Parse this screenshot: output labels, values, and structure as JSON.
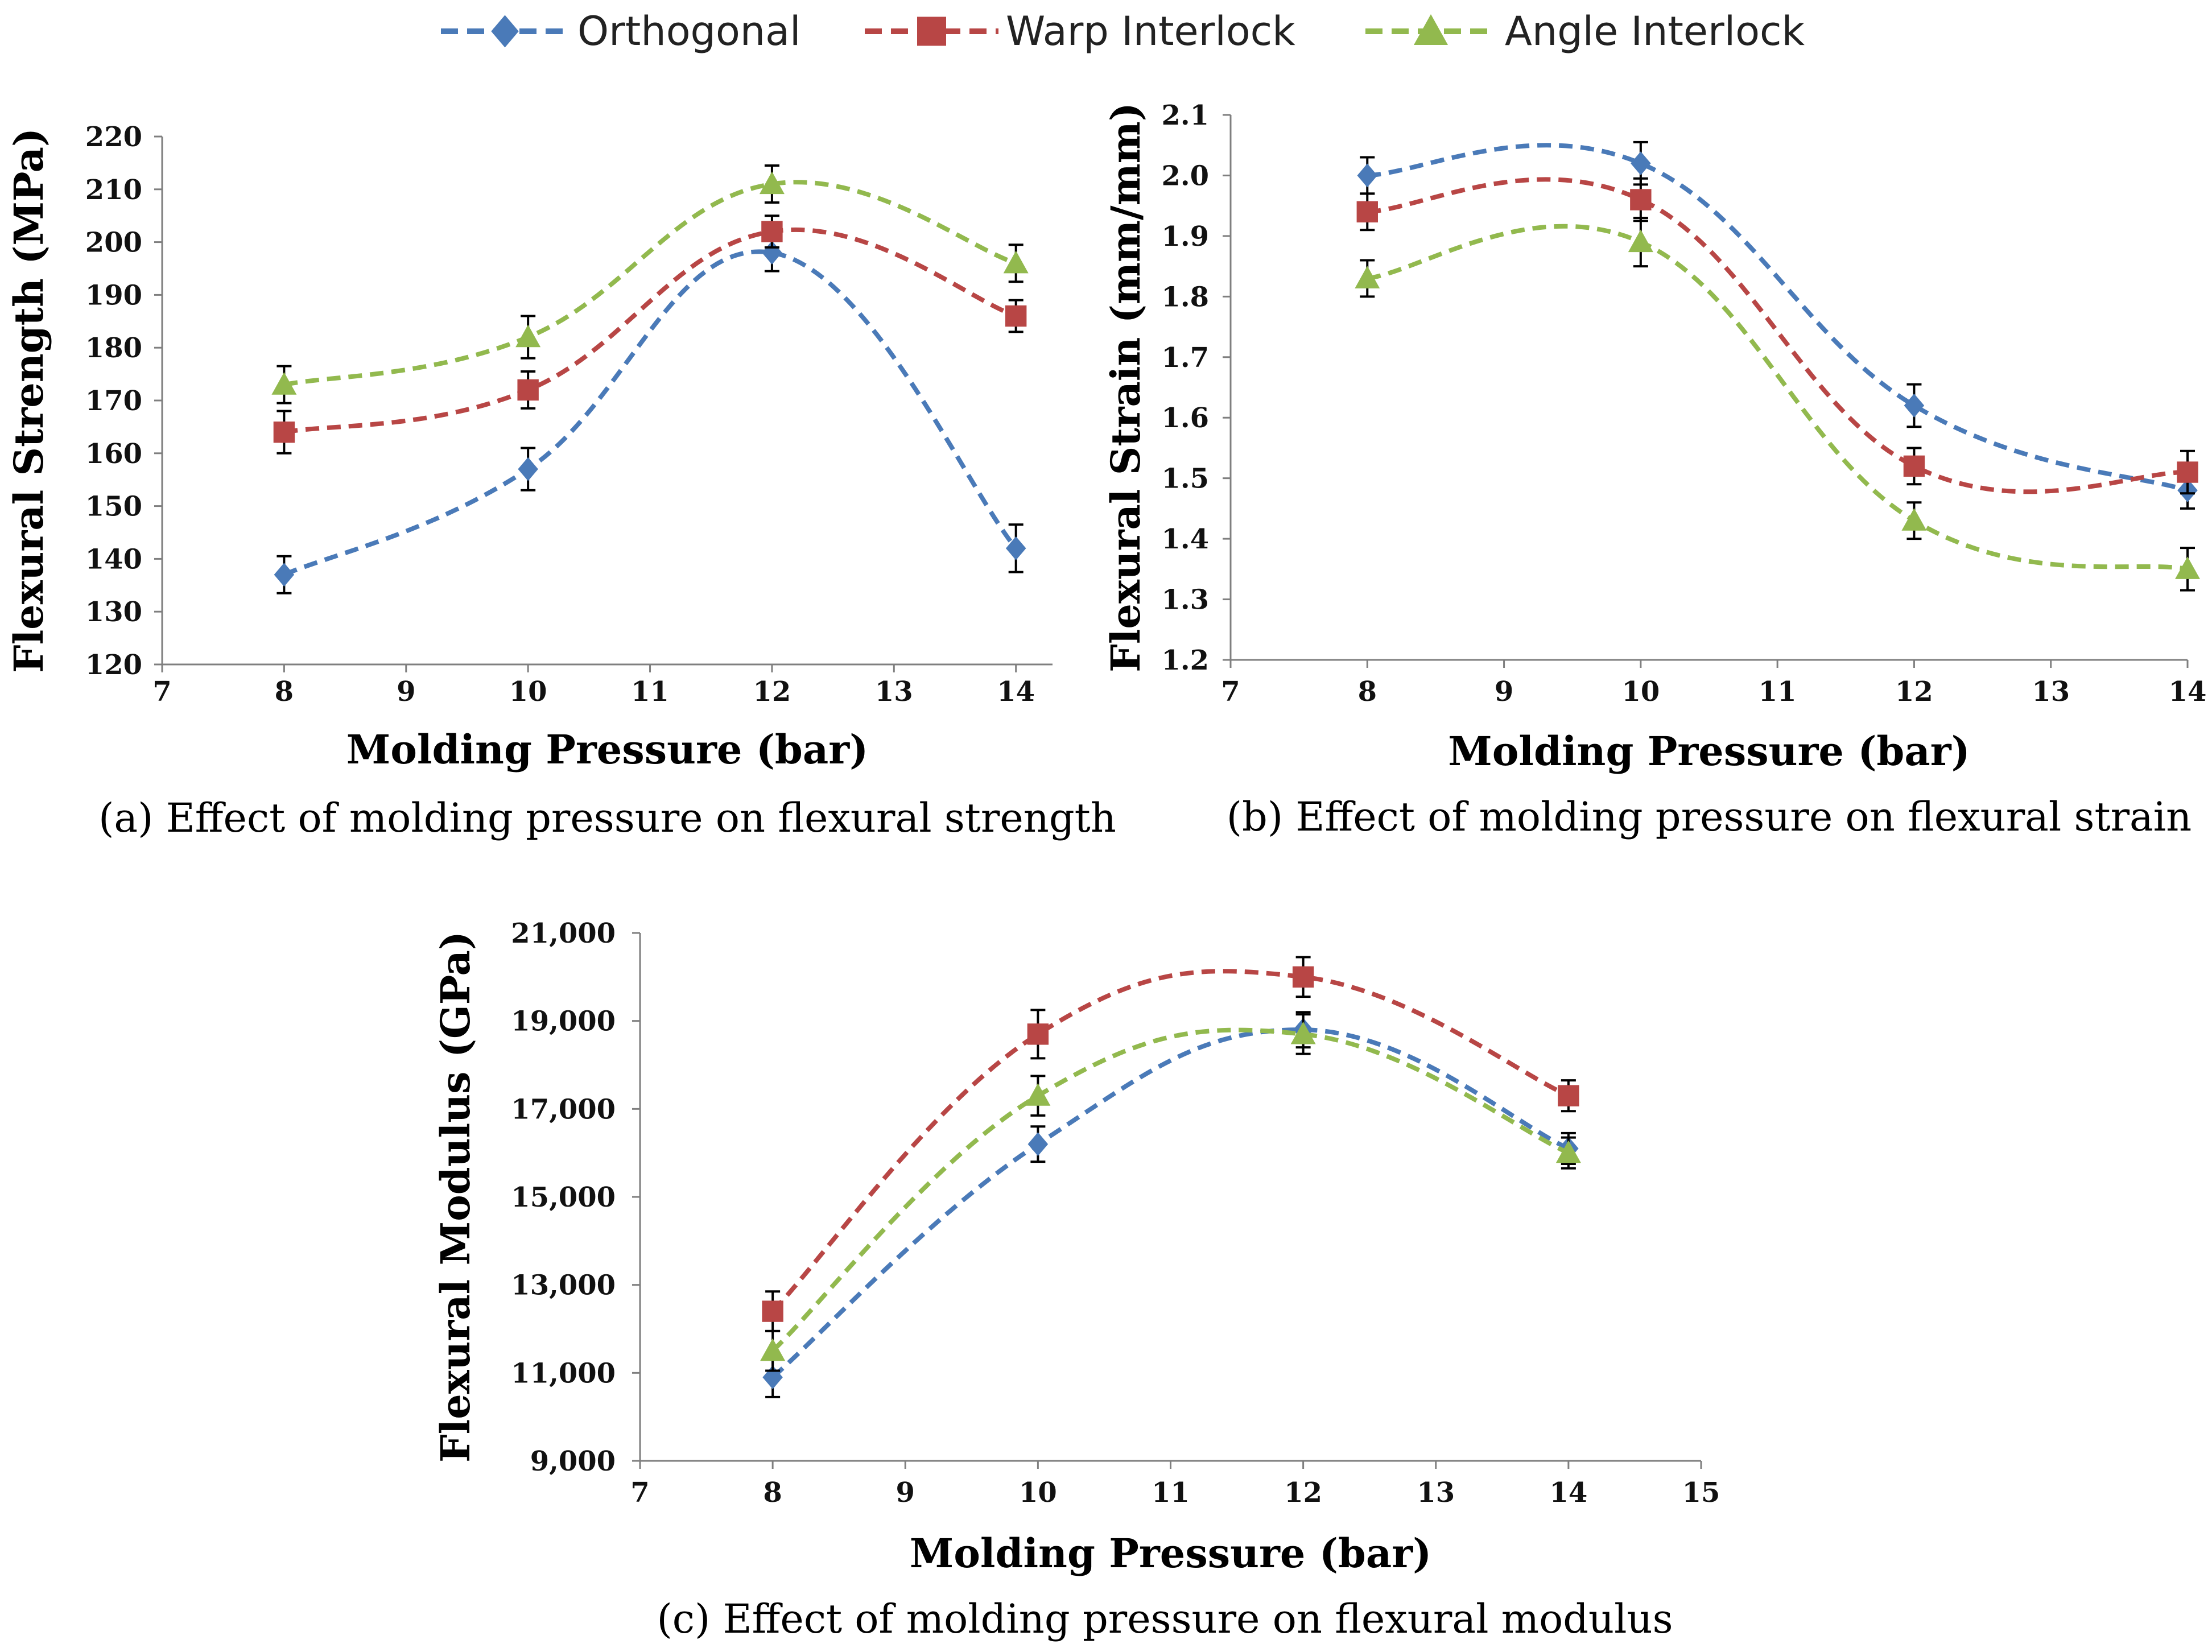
{
  "legend": [
    {
      "name": "Orthogonal",
      "color": "#4a7ab8",
      "marker": "diamond-icon"
    },
    {
      "name": "Warp Interlock",
      "color": "#b84645",
      "marker": "square-icon"
    },
    {
      "name": "Angle Interlock",
      "color": "#92b94e",
      "marker": "triangle-icon"
    }
  ],
  "chart_data": [
    {
      "type": "line",
      "id": "a",
      "caption": "(a) Effect of molding pressure on flexural strength",
      "xlabel": "Molding Pressure (bar)",
      "ylabel": "Flexural Strength (MPa)",
      "xlim": [
        7,
        14.3
      ],
      "ylim": [
        120,
        220
      ],
      "xticks": [
        7,
        8,
        9,
        10,
        11,
        12,
        13,
        14
      ],
      "xtick_labels": [
        "7",
        "8",
        "9",
        "10",
        "11",
        "12",
        "13",
        "14"
      ],
      "yticks": [
        120,
        130,
        140,
        150,
        160,
        170,
        180,
        190,
        200,
        210,
        220
      ],
      "ytick_labels": [
        "120",
        "130",
        "140",
        "150",
        "160",
        "170",
        "180",
        "190",
        "200",
        "210",
        "220"
      ],
      "x": [
        8,
        10,
        12,
        14
      ],
      "series": [
        {
          "name": "Orthogonal",
          "values": [
            137,
            157,
            198,
            142
          ],
          "errors": [
            3.5,
            4,
            3.5,
            4.5
          ]
        },
        {
          "name": "Warp Interlock",
          "values": [
            164,
            172,
            202,
            186
          ],
          "errors": [
            4,
            3.5,
            3,
            3
          ]
        },
        {
          "name": "Angle Interlock",
          "values": [
            173,
            182,
            211,
            196
          ],
          "errors": [
            3.5,
            4,
            3.5,
            3.5
          ]
        }
      ]
    },
    {
      "type": "line",
      "id": "b",
      "caption": "(b) Effect of molding pressure on flexural strain",
      "xlabel": "Molding Pressure (bar)",
      "ylabel": "Flexural Strain (mm/mm)",
      "xlim": [
        7,
        14
      ],
      "ylim": [
        1.2,
        2.1
      ],
      "xticks": [
        7,
        8,
        9,
        10,
        11,
        12,
        13,
        14
      ],
      "xtick_labels": [
        "7",
        "8",
        "9",
        "10",
        "11",
        "12",
        "13",
        "14"
      ],
      "yticks": [
        1.2,
        1.3,
        1.4,
        1.5,
        1.6,
        1.7,
        1.8,
        1.9,
        2.0,
        2.1
      ],
      "ytick_labels": [
        "1.2",
        "1.3",
        "1.4",
        "1.5",
        "1.6",
        "1.7",
        "1.8",
        "1.9",
        "2.0",
        "2.1"
      ],
      "x": [
        8,
        10,
        12,
        14
      ],
      "series": [
        {
          "name": "Orthogonal",
          "values": [
            2.0,
            2.02,
            1.62,
            1.48
          ],
          "errors": [
            0.03,
            0.035,
            0.035,
            0.03
          ]
        },
        {
          "name": "Warp Interlock",
          "values": [
            1.94,
            1.96,
            1.52,
            1.51
          ],
          "errors": [
            0.03,
            0.035,
            0.03,
            0.035
          ]
        },
        {
          "name": "Angle Interlock",
          "values": [
            1.83,
            1.89,
            1.43,
            1.35
          ],
          "errors": [
            0.03,
            0.04,
            0.03,
            0.035
          ]
        }
      ]
    },
    {
      "type": "line",
      "id": "c",
      "caption": "(c) Effect of molding pressure on flexural modulus",
      "xlabel": "Molding Pressure (bar)",
      "ylabel": "Flexural Modulus (GPa)",
      "xlim": [
        7,
        15
      ],
      "ylim": [
        9000,
        21000
      ],
      "xticks": [
        7,
        8,
        9,
        10,
        11,
        12,
        13,
        14,
        15
      ],
      "xtick_labels": [
        "7",
        "8",
        "9",
        "10",
        "11",
        "12",
        "13",
        "14",
        "15"
      ],
      "yticks": [
        9000,
        11000,
        13000,
        15000,
        17000,
        19000,
        21000
      ],
      "ytick_labels": [
        "9,000",
        "11,000",
        "13,000",
        "15,000",
        "17,000",
        "19,000",
        "21,000"
      ],
      "x": [
        8,
        10,
        12,
        14
      ],
      "series": [
        {
          "name": "Orthogonal",
          "values": [
            10900,
            16200,
            18800,
            16100
          ],
          "errors": [
            450,
            400,
            400,
            350
          ]
        },
        {
          "name": "Warp Interlock",
          "values": [
            12400,
            18700,
            20000,
            17300
          ],
          "errors": [
            450,
            550,
            450,
            350
          ]
        },
        {
          "name": "Angle Interlock",
          "values": [
            11500,
            17300,
            18700,
            16000
          ],
          "errors": [
            450,
            450,
            450,
            350
          ]
        }
      ]
    }
  ]
}
